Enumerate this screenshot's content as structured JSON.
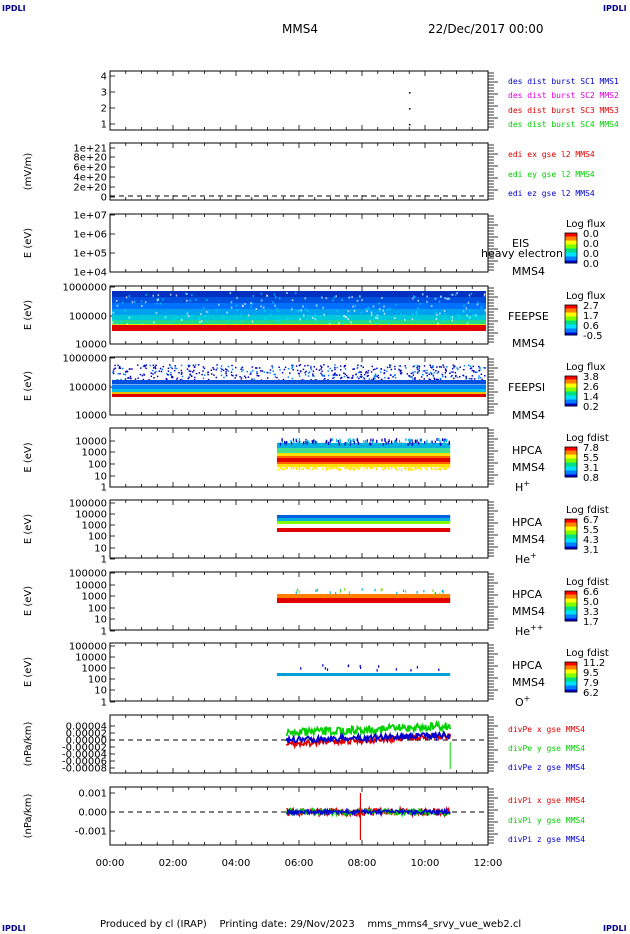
{
  "corner_tag": "IPDLI",
  "header": {
    "spacecraft": "MMS4",
    "date": "22/Dec/2017 00:00"
  },
  "footer": {
    "produced_by": "Produced by cl (IRAP)",
    "printing_date": "Printing date: 29/Nov/2023",
    "filename": "mms_mms4_srvy_vue_web2.cl"
  },
  "colors": {
    "red": "#e00000",
    "magenta": "#e000e0",
    "green": "#00d000",
    "blue": "#0000d0",
    "cyan": "#00b0e0"
  },
  "chart_data": [
    {
      "type": "scatter",
      "name": "burst",
      "yticks": [
        "4",
        "3",
        "2",
        "1"
      ],
      "legend": [
        {
          "label": "des dist burst SC1 MMS1",
          "color": "#0000d0"
        },
        {
          "label": "des dist burst SC2 MMS2",
          "color": "#e000e0"
        },
        {
          "label": "des dist burst SC3 MMS3",
          "color": "#e00000"
        },
        {
          "label": "des dist burst SC4 MMS4",
          "color": "#00d000"
        }
      ]
    },
    {
      "type": "line",
      "name": "edi",
      "ylabel": "(mV/m)",
      "yticks": [
        "1e+21",
        "8e+20",
        "6e+20",
        "4e+20",
        "2e+20",
        "0"
      ],
      "legend": [
        {
          "label": "edi ex gse l2 MMS4",
          "color": "#e00000"
        },
        {
          "label": "edi ey gse l2 MMS4",
          "color": "#00d000"
        },
        {
          "label": "edi ez gse l2 MMS4",
          "color": "#0000d0"
        }
      ]
    },
    {
      "type": "heatmap",
      "name": "eis",
      "ylabel": "E (eV)",
      "yticks": [
        "1e+07",
        "1e+06",
        "1e+05",
        "1e+04"
      ],
      "instrument": "EIS",
      "sc": "MMS4",
      "overlay": "heavy electron to",
      "cbar_title": "Log flux",
      "cbar_ticks": [
        "0.0",
        "0.0",
        "0.0",
        "0.0"
      ]
    },
    {
      "type": "heatmap",
      "name": "feepse",
      "ylabel": "E (eV)",
      "yticks": [
        "1000000",
        "100000",
        "10000"
      ],
      "instrument": "FEEPSE",
      "sc": "MMS4",
      "cbar_title": "Log flux",
      "cbar_ticks": [
        "2.7",
        "1.7",
        "0.6",
        "-0.5"
      ]
    },
    {
      "type": "heatmap",
      "name": "feepsi",
      "ylabel": "E (eV)",
      "yticks": [
        "1000000",
        "100000",
        "10000"
      ],
      "instrument": "FEEPSI",
      "sc": "MMS4",
      "cbar_title": "Log flux",
      "cbar_ticks": [
        "3.8",
        "2.6",
        "1.4",
        "0.2"
      ]
    },
    {
      "type": "heatmap",
      "name": "hpca-h",
      "ylabel": "E (eV)",
      "yticks": [
        "10000",
        "1000",
        "100",
        "10",
        "1"
      ],
      "instrument": "HPCA",
      "sc": "MMS4",
      "species": "H",
      "charge": "+",
      "cbar_title": "Log fdist",
      "cbar_ticks": [
        "7.8",
        "5.5",
        "3.1",
        "0.8"
      ]
    },
    {
      "type": "heatmap",
      "name": "hpca-he",
      "ylabel": "E (eV)",
      "yticks": [
        "100000",
        "10000",
        "1000",
        "100",
        "10",
        "1"
      ],
      "instrument": "HPCA",
      "sc": "MMS4",
      "species": "He",
      "charge": "+",
      "cbar_title": "Log fdist",
      "cbar_ticks": [
        "6.7",
        "5.5",
        "4.3",
        "3.1"
      ]
    },
    {
      "type": "heatmap",
      "name": "hpca-he2",
      "ylabel": "E (eV)",
      "yticks": [
        "100000",
        "10000",
        "1000",
        "100",
        "10",
        "1"
      ],
      "instrument": "HPCA",
      "sc": "MMS4",
      "species": "He",
      "charge": "++",
      "cbar_title": "Log fdist",
      "cbar_ticks": [
        "6.6",
        "5.0",
        "3.3",
        "1.7"
      ]
    },
    {
      "type": "heatmap",
      "name": "hpca-o",
      "ylabel": "E (eV)",
      "yticks": [
        "100000",
        "10000",
        "1000",
        "100",
        "10",
        "1"
      ],
      "instrument": "HPCA",
      "sc": "MMS4",
      "species": "O",
      "charge": "+",
      "cbar_title": "Log fdist",
      "cbar_ticks": [
        "11.2",
        "9.5",
        "7.9",
        "6.2"
      ]
    },
    {
      "type": "line",
      "name": "divpe",
      "ylabel": "(nPa/km)",
      "yticks": [
        "0.00004",
        "0.00002",
        "0.00000",
        "-0.00002",
        "-0.00004",
        "-0.00006",
        "-0.00008"
      ],
      "legend": [
        {
          "label": "divPe x gse MMS4",
          "color": "#e00000"
        },
        {
          "label": "divPe y gse MMS4",
          "color": "#00d000"
        },
        {
          "label": "divPe z gse MMS4",
          "color": "#0000d0"
        }
      ]
    },
    {
      "type": "line",
      "name": "divpi",
      "ylabel": "(nPa/km)",
      "yticks": [
        "0.001",
        "0.000",
        "-0.001"
      ],
      "legend": [
        {
          "label": "divPi x gse MMS4",
          "color": "#e00000"
        },
        {
          "label": "divPi y gse MMS4",
          "color": "#00d000"
        },
        {
          "label": "divPi z gse MMS4",
          "color": "#0000d0"
        }
      ]
    }
  ],
  "xaxis": {
    "ticks": [
      "00:00",
      "02:00",
      "04:00",
      "06:00",
      "08:00",
      "10:00",
      "12:00"
    ],
    "range_hours": [
      0,
      12
    ]
  }
}
